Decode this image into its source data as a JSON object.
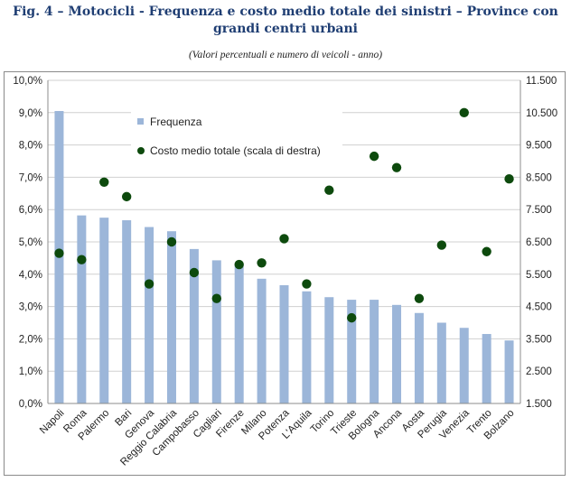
{
  "figure": {
    "title": "Fig. 4 – Motocicli - Frequenza e costo medio totale dei sinistri – Province con grandi centri urbani",
    "subtitle": "(Valori percentuali e numero di veicoli - anno)"
  },
  "chart_data": {
    "type": "bar",
    "categories": [
      "Napoli",
      "Roma",
      "Palermo",
      "Bari",
      "Genova",
      "Reggio Calabria",
      "Campobasso",
      "Cagliari",
      "Firenze",
      "Milano",
      "Potenza",
      "L'Aquila",
      "Torino",
      "Trieste",
      "Bologna",
      "Ancona",
      "Aosta",
      "Perugia",
      "Venezia",
      "Trento",
      "Bolzano"
    ],
    "series": [
      {
        "name": "Frequenza",
        "type": "bar",
        "axis": "left",
        "color": "#9cb6d9",
        "values": [
          9.05,
          5.82,
          5.75,
          5.67,
          5.46,
          5.33,
          4.78,
          4.43,
          4.29,
          3.86,
          3.66,
          3.47,
          3.29,
          3.21,
          3.21,
          3.05,
          2.8,
          2.5,
          2.34,
          2.15,
          1.95
        ]
      },
      {
        "name": "Costo medio totale (scala di destra)",
        "type": "scatter",
        "axis": "right",
        "color": "#0d4a0d",
        "values": [
          6150,
          5950,
          8350,
          7900,
          5200,
          6500,
          5550,
          4750,
          5800,
          5850,
          6600,
          5200,
          8100,
          4150,
          9150,
          8800,
          4750,
          6400,
          10500,
          6200,
          8450
        ]
      }
    ],
    "y_left": {
      "ylim": [
        0,
        10
      ],
      "ticks": [
        0,
        1,
        2,
        3,
        4,
        5,
        6,
        7,
        8,
        9,
        10
      ],
      "tick_labels": [
        "0,0%",
        "1,0%",
        "2,0%",
        "3,0%",
        "4,0%",
        "5,0%",
        "6,0%",
        "7,0%",
        "8,0%",
        "9,0%",
        "10,0%"
      ]
    },
    "y_right": {
      "ylim": [
        1500,
        11500
      ],
      "ticks": [
        1500,
        2500,
        3500,
        4500,
        5500,
        6500,
        7500,
        8500,
        9500,
        10500,
        11500
      ],
      "tick_labels": [
        "1.500",
        "2.500",
        "3.500",
        "4.500",
        "5.500",
        "6.500",
        "7.500",
        "8.500",
        "9.500",
        "10.500",
        "11.500"
      ]
    },
    "grid": "horizontal",
    "legend": {
      "placement": "top-left-inside",
      "entries": [
        "Frequenza",
        "Costo medio totale (scala di destra)"
      ]
    }
  }
}
